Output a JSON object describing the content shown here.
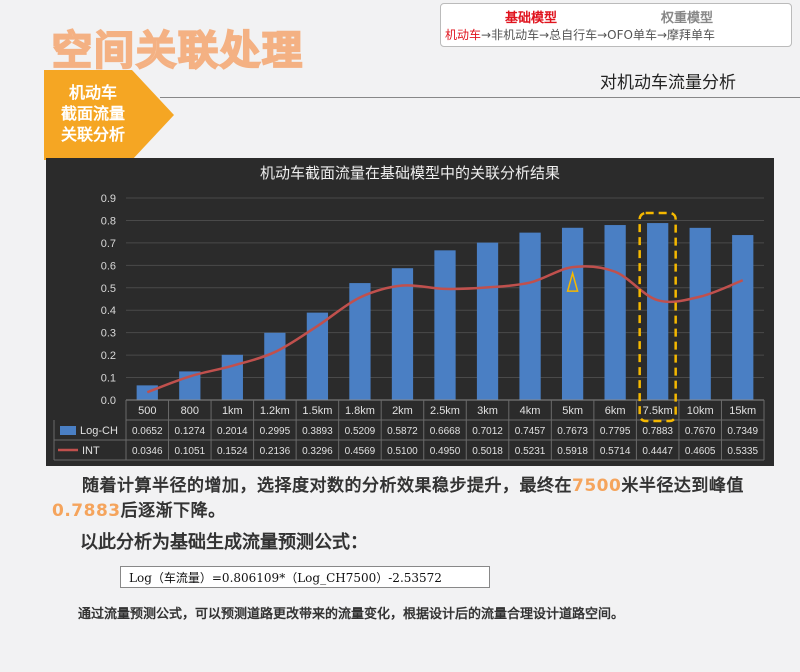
{
  "header": {
    "title": "空间关联处理",
    "nav": {
      "tabs": [
        "基础模型",
        "权重模型"
      ],
      "flow_active": "机动车",
      "flow_rest": "→非机动车→总自行车→OFO单车→摩拜单车"
    },
    "subtitle": "对机动车流量分析"
  },
  "badge": {
    "lines": [
      "机动车",
      "截面流量",
      "关联分析"
    ]
  },
  "chart_data": {
    "type": "bar",
    "title": "机动车截面流量在基础模型中的关联分析结果",
    "categories": [
      "500",
      "800",
      "1km",
      "1.2km",
      "1.5km",
      "1.8km",
      "2km",
      "2.5km",
      "3km",
      "4km",
      "5km",
      "6km",
      "7.5km",
      "10km",
      "15km"
    ],
    "series": [
      {
        "name": "Log-CH",
        "type": "bar",
        "color": "#4a7fc4",
        "values": [
          0.0652,
          0.1274,
          0.2014,
          0.2995,
          0.3893,
          0.5209,
          0.5872,
          0.6668,
          0.7012,
          0.7457,
          0.7673,
          0.7795,
          0.7883,
          0.767,
          0.7349
        ],
        "labels": [
          "0.0652",
          "0.1274",
          "0.2014",
          "0.2995",
          "0.3893",
          "0.5209",
          "0.5872",
          "0.6668",
          "0.7012",
          "0.7457",
          "0.7673",
          "0.7795",
          "0.7883",
          "0.7670",
          "0.7349"
        ]
      },
      {
        "name": "INT",
        "type": "line",
        "color": "#c0504d",
        "values": [
          0.0346,
          0.1051,
          0.1524,
          0.2136,
          0.3296,
          0.4569,
          0.51,
          0.495,
          0.5018,
          0.5231,
          0.5918,
          0.5714,
          0.4447,
          0.4605,
          0.5335
        ],
        "labels": [
          "0.0346",
          "0.1051",
          "0.1524",
          "0.2136",
          "0.3296",
          "0.4569",
          "0.5100",
          "0.4950",
          "0.5018",
          "0.5231",
          "0.5918",
          "0.5714",
          "0.4447",
          "0.4605",
          "0.5335"
        ]
      }
    ],
    "yticks": [
      "0.0",
      "0.1",
      "0.2",
      "0.3",
      "0.4",
      "0.5",
      "0.6",
      "0.7",
      "0.8",
      "0.9"
    ],
    "ylim": [
      0,
      0.9
    ],
    "grid": true,
    "legend": "data-table",
    "highlight_category": "7.5km",
    "highlight_color": "#f5b800"
  },
  "body": {
    "p1_a": "随着计算半径的增加，选择度对数的分析效果稳步提升，最终在",
    "p1_num1": "7500",
    "p1_b": "米半径达到峰值",
    "p1_num2": "0.7883",
    "p1_c": "后逐渐下降。",
    "p2": "以此分析为基础生成流量预测公式：",
    "formula": "Log（车流量）=0.806109*（Log_CH7500）-2.53572",
    "p3": "通过流量预测公式，可以预测道路更改带来的流量变化，根据设计后的流量合理设计道路空间。"
  }
}
